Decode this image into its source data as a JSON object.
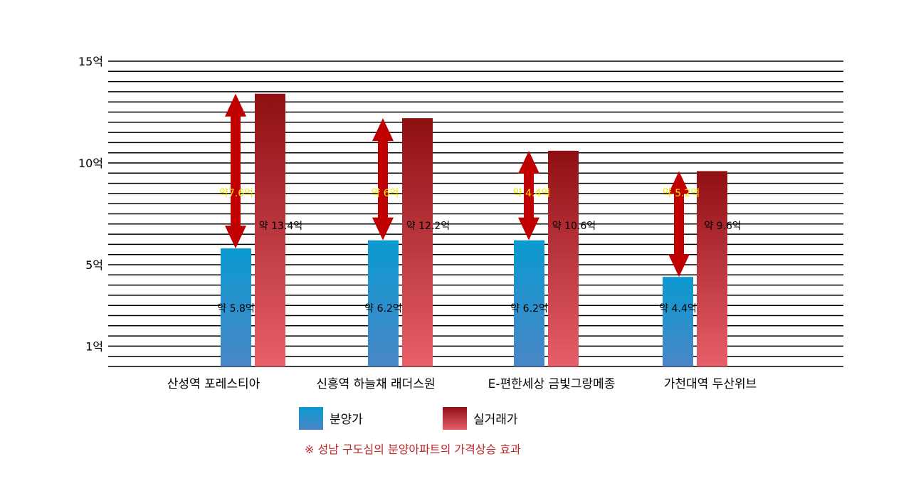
{
  "chart_data": {
    "type": "bar",
    "categories": [
      "산성역 포레스티아",
      "신흥역 하늘채 래더스원",
      "E-편한세상 금빛그랑메종",
      "가천대역 두산위브"
    ],
    "series": [
      {
        "name": "분양가",
        "values": [
          5.8,
          6.2,
          6.2,
          4.4
        ],
        "labels": [
          "약 5.8억",
          "약 6.2억",
          "약 6.2억",
          "약 4.4억"
        ]
      },
      {
        "name": "실거래가",
        "values": [
          13.4,
          12.2,
          10.6,
          9.6
        ],
        "labels": [
          "약 13.4억",
          "약 12.2억",
          "약 10.6억",
          "약 9.6억"
        ]
      }
    ],
    "differences": {
      "values": [
        7.6,
        6,
        4.4,
        5.2
      ],
      "labels": [
        "약7.6억",
        "약 6억",
        "약 4.4억",
        "약 5.2억"
      ]
    },
    "yticks": [
      {
        "value": 15,
        "label": "15억"
      },
      {
        "value": 10,
        "label": "10억"
      },
      {
        "value": 5,
        "label": "5억"
      },
      {
        "value": 1,
        "label": "1억"
      }
    ],
    "ylim": [
      0,
      15
    ],
    "grid": true,
    "legend_position": "bottom",
    "note": "※ 성남 구도심의 분양아파트의 가격상승 효과",
    "colors": {
      "presale_top": "#0a9ad0",
      "presale_bottom": "#4a86c6",
      "actual_top": "#8e0f12",
      "actual_bottom": "#e85f6a",
      "arrow": "#c00000",
      "diff_text": "#f2e600",
      "note": "#c0282d",
      "grid": "#000000"
    }
  }
}
